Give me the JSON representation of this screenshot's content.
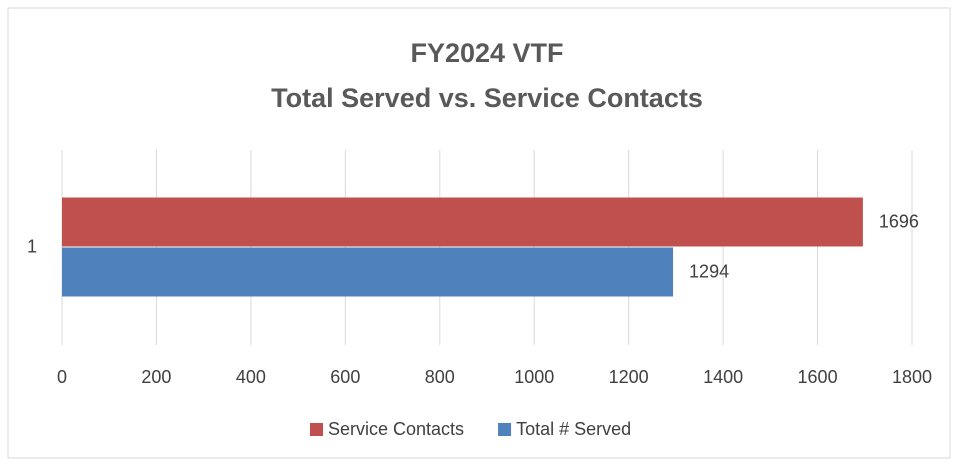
{
  "chart_data": {
    "type": "bar",
    "orientation": "horizontal",
    "title": [
      "FY2024 VTF",
      "Total Served vs. Service Contacts"
    ],
    "categories": [
      "1"
    ],
    "series": [
      {
        "name": "Service Contacts",
        "color": "#c0504d",
        "values": [
          1696
        ]
      },
      {
        "name": "Total # Served",
        "color": "#4f81bd",
        "values": [
          1294
        ]
      }
    ],
    "xlim": [
      0,
      1800
    ],
    "xticks": [
      0,
      200,
      400,
      600,
      800,
      1000,
      1200,
      1400,
      1600,
      1800
    ],
    "grid": true,
    "legend": "bottom",
    "data_labels": true
  }
}
